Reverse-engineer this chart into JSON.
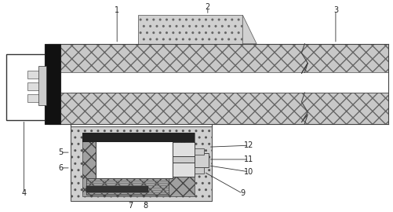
{
  "figsize": [
    5.02,
    2.7
  ],
  "dpi": 100,
  "lc": "#444444",
  "hatch_fc": "#cccccc",
  "hatch_fc2": "#bbbbbb",
  "white": "#ffffff",
  "black": "#111111",
  "gray": "#888888",
  "darkgray": "#555555"
}
